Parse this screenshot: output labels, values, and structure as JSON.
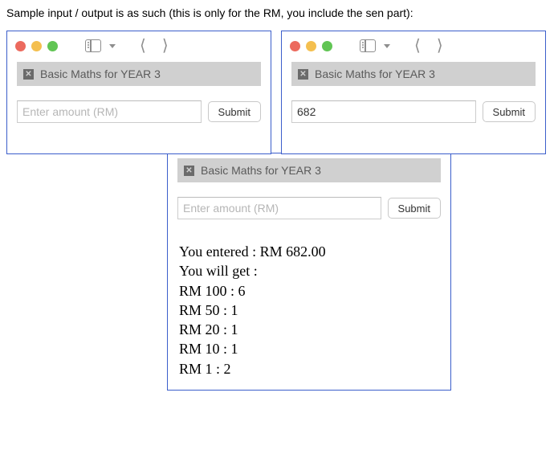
{
  "instruction": "Sample input / output is as such (this is only for the RM, you include the sen part):",
  "app_title": "Basic Maths for YEAR 3",
  "placeholder": "Enter amount (RM)",
  "submit_label": "Submit",
  "window2_input_value": "682",
  "output": {
    "entered": "You entered : RM 682.00",
    "willget": "You will get :",
    "lines": [
      "RM 100 : 6",
      "RM 50 : 1",
      "RM 20 : 1",
      "RM 10 : 1",
      "RM 1 : 2"
    ]
  },
  "colors": {
    "window_border": "#3b5ecb",
    "titlebar_bg": "#d0d0d0",
    "traffic_red": "#ec6a5e",
    "traffic_yellow": "#f4bf4f",
    "traffic_green": "#61c554"
  }
}
